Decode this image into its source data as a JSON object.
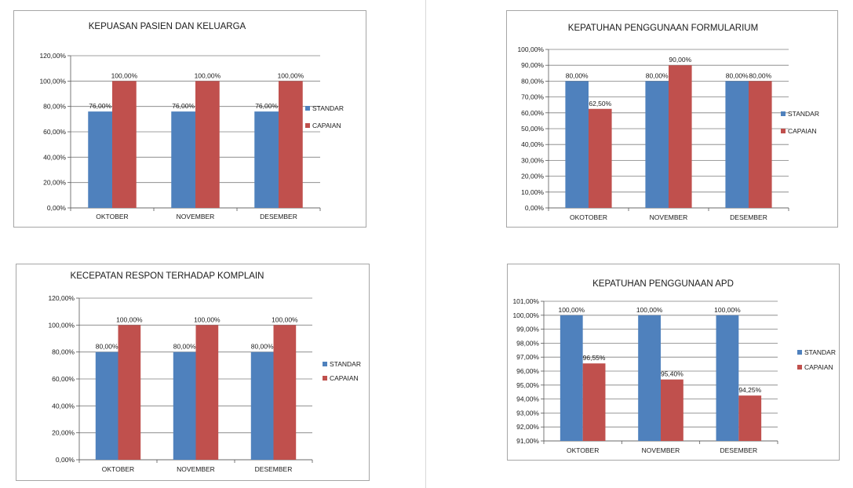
{
  "colors": {
    "standar": "#4f81bd",
    "capaian": "#c0504d",
    "gridline": "#7f7f7f",
    "axis": "#595959"
  },
  "chart_data": [
    {
      "type": "bar",
      "title": "KEPUASAN PASIEN DAN KELUARGA",
      "categories": [
        "OKTOBER",
        "NOVEMBER",
        "DESEMBER"
      ],
      "series": [
        {
          "name": "STANDAR",
          "values": [
            76,
            76,
            76
          ],
          "labels": [
            "76,00%",
            "76,00%",
            "76,00%"
          ]
        },
        {
          "name": "CAPAIAN",
          "values": [
            100,
            100,
            100
          ],
          "labels": [
            "100,00%",
            "100,00%",
            "100,00%"
          ]
        }
      ],
      "ylim": [
        0,
        120
      ],
      "yticks": [
        0,
        20,
        40,
        60,
        80,
        100,
        120
      ],
      "ytick_labels": [
        "0,00%",
        "20,00%",
        "40,00%",
        "60,00%",
        "80,00%",
        "100,00%",
        "120,00%"
      ],
      "xlabel": "",
      "ylabel": "",
      "grid": true,
      "legend": "right"
    },
    {
      "type": "bar",
      "title": "KEPATUHAN PENGGUNAAN FORMULARIUM",
      "categories": [
        "OKOTOBER",
        "NOVEMBER",
        "DESEMBER"
      ],
      "series": [
        {
          "name": "STANDAR",
          "values": [
            80,
            80,
            80
          ],
          "labels": [
            "80,00%",
            "80,00%",
            "80,00%"
          ]
        },
        {
          "name": "CAPAIAN",
          "values": [
            62.5,
            90,
            80
          ],
          "labels": [
            "62,50%",
            "90,00%",
            "80,00%"
          ]
        }
      ],
      "ylim": [
        0,
        100
      ],
      "yticks": [
        0,
        10,
        20,
        30,
        40,
        50,
        60,
        70,
        80,
        90,
        100
      ],
      "ytick_labels": [
        "0,00%",
        "10,00%",
        "20,00%",
        "30,00%",
        "40,00%",
        "50,00%",
        "60,00%",
        "70,00%",
        "80,00%",
        "90,00%",
        "100,00%"
      ],
      "xlabel": "",
      "ylabel": "",
      "grid": true,
      "legend": "right"
    },
    {
      "type": "bar",
      "title": "KECEPATAN RESPON TERHADAP KOMPLAIN",
      "categories": [
        "OKTOBER",
        "NOVEMBER",
        "DESEMBER"
      ],
      "series": [
        {
          "name": "STANDAR",
          "values": [
            80,
            80,
            80
          ],
          "labels": [
            "80,00%",
            "80,00%",
            "80,00%"
          ]
        },
        {
          "name": "CAPAIAN",
          "values": [
            100,
            100,
            100
          ],
          "labels": [
            "100,00%",
            "100,00%",
            "100,00%"
          ]
        }
      ],
      "ylim": [
        0,
        120
      ],
      "yticks": [
        0,
        20,
        40,
        60,
        80,
        100,
        120
      ],
      "ytick_labels": [
        "0,00%",
        "20,00%",
        "40,00%",
        "60,00%",
        "80,00%",
        "100,00%",
        "120,00%"
      ],
      "xlabel": "",
      "ylabel": "",
      "grid": true,
      "legend": "right"
    },
    {
      "type": "bar",
      "title": "KEPATUHAN PENGGUNAAN APD",
      "categories": [
        "OKTOBER",
        "NOVEMBER",
        "DESEMBER"
      ],
      "series": [
        {
          "name": "STANDAR",
          "values": [
            100,
            100,
            100
          ],
          "labels": [
            "100,00%",
            "100,00%",
            "100,00%"
          ]
        },
        {
          "name": "CAPAIAN",
          "values": [
            96.55,
            95.4,
            94.25
          ],
          "labels": [
            "96,55%",
            "95,40%",
            "94,25%"
          ]
        }
      ],
      "ylim": [
        91,
        101
      ],
      "yticks": [
        91,
        92,
        93,
        94,
        95,
        96,
        97,
        98,
        99,
        100,
        101
      ],
      "ytick_labels": [
        "91,00%",
        "92,00%",
        "93,00%",
        "94,00%",
        "95,00%",
        "96,00%",
        "97,00%",
        "98,00%",
        "99,00%",
        "100,00%",
        "101,00%"
      ],
      "xlabel": "",
      "ylabel": "",
      "grid": true,
      "legend": "right"
    }
  ]
}
